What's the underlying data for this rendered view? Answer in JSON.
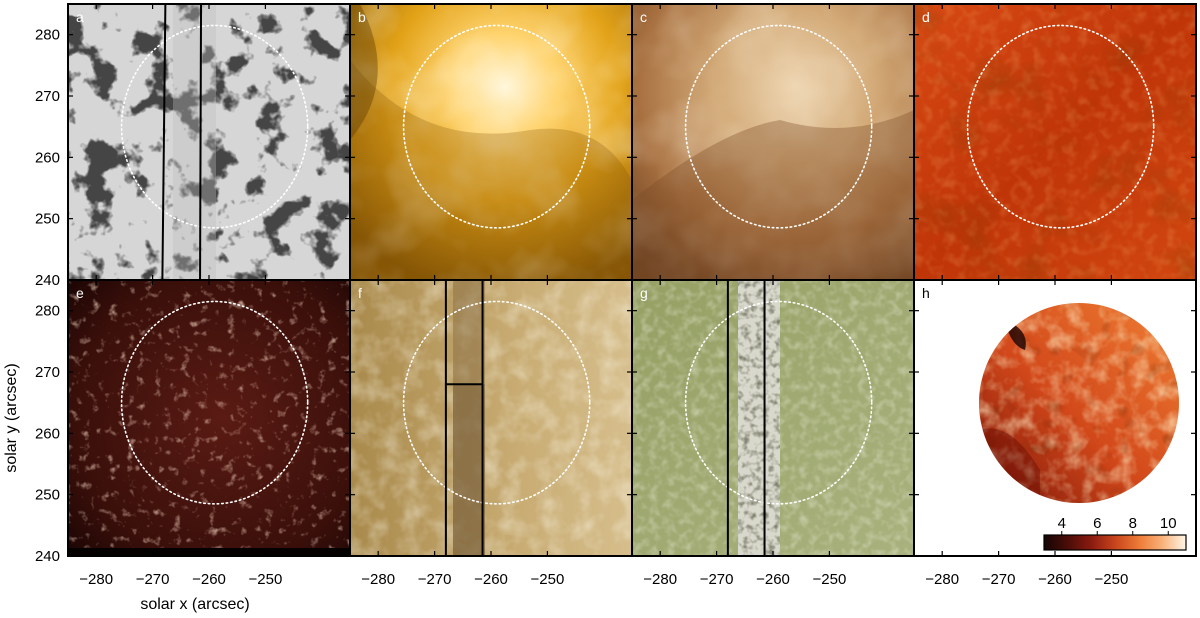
{
  "figure": {
    "panels": [
      {
        "letter": "a",
        "colormap": "gray-magnetogram",
        "slit": true,
        "divider": false
      },
      {
        "letter": "b",
        "colormap": "gold-corona",
        "slit": false,
        "divider": false
      },
      {
        "letter": "c",
        "colormap": "brown-corona",
        "slit": false,
        "divider": false
      },
      {
        "letter": "d",
        "colormap": "red-corona",
        "slit": false,
        "divider": false
      },
      {
        "letter": "e",
        "colormap": "dark-red-chromosphere",
        "slit": false,
        "divider": false
      },
      {
        "letter": "f",
        "colormap": "tan-transition-region",
        "slit": true,
        "divider": true
      },
      {
        "letter": "g",
        "colormap": "olive-photosphere",
        "slit": true,
        "divider": false
      },
      {
        "letter": "h",
        "colormap": "heat-map-disk",
        "slit": false,
        "divider": false
      }
    ],
    "circle_center_arcsec": [
      -259.0,
      265.0
    ],
    "circle_radius_arcsec": 16.5,
    "slit_x_arcsec": [
      -268.0,
      -261.5
    ],
    "x_ticks": [
      "−280",
      "−270",
      "−260",
      "−250"
    ],
    "x_tick_values": [
      -280,
      -270,
      -260,
      -250
    ],
    "y_ticks_top": [
      "280",
      "270",
      "260",
      "250",
      "240"
    ],
    "y_ticks_bottom": [
      "280",
      "270",
      "260",
      "250",
      "240"
    ],
    "y_tick_values": [
      280,
      270,
      260,
      250,
      240
    ],
    "x_range": [
      -285,
      -235
    ],
    "y_range": [
      240,
      285
    ],
    "xlabel": "solar x (arcsec)",
    "ylabel": "solar y (arcsec)",
    "colorbar": {
      "ticks": [
        "4",
        "6",
        "8",
        "10"
      ],
      "tick_values": [
        4,
        6,
        8,
        10
      ],
      "range": [
        3,
        11
      ],
      "colors": [
        "#140505",
        "#4a0d08",
        "#8a1b10",
        "#c8441c",
        "#ec7a36",
        "#f8b27a",
        "#fff6e8"
      ]
    }
  }
}
